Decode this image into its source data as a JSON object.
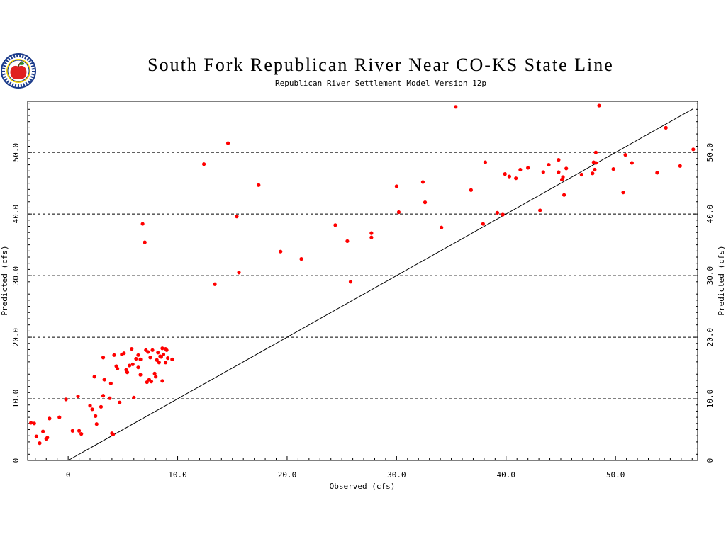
{
  "logo": {
    "icon": "apple-seal-icon"
  },
  "chart_data": {
    "type": "scatter",
    "title": "South Fork Republican River Near CO-KS State Line",
    "subtitle": "Republican River Settlement Model Version 12p",
    "xlabel": "Observed (cfs)",
    "ylabel": "Predicted (cfs)",
    "ylabel_right": "Predicted (cfs)",
    "xlim": [
      -3.7,
      57.5
    ],
    "ylim": [
      0,
      58.3
    ],
    "x_ticks": [
      0,
      10,
      20,
      30,
      40,
      50
    ],
    "x_tick_labels": [
      "0",
      "10.0",
      "20.0",
      "30.0",
      "40.0",
      "50.0"
    ],
    "y_ticks": [
      0,
      10,
      20,
      30,
      40,
      50
    ],
    "y_tick_labels": [
      "0",
      "10.0",
      "20.0",
      "30.0",
      "40.0",
      "50.0"
    ],
    "gridlines": "horizontal dashed at 10, 20, 30, 40, 50",
    "reference_line": {
      "type": "1:1",
      "from": [
        0,
        0
      ],
      "to": [
        57.1,
        57.1
      ]
    },
    "marker_color": "#ff0000",
    "points": [
      [
        -3.4,
        6.1
      ],
      [
        -3.1,
        6.0
      ],
      [
        -2.9,
        3.9
      ],
      [
        -2.6,
        2.8
      ],
      [
        -2.3,
        4.7
      ],
      [
        -2.0,
        3.5
      ],
      [
        -1.9,
        3.7
      ],
      [
        -1.7,
        6.8
      ],
      [
        -0.8,
        7.0
      ],
      [
        -0.2,
        9.9
      ],
      [
        0.4,
        4.8
      ],
      [
        0.9,
        10.4
      ],
      [
        1.0,
        4.8
      ],
      [
        1.2,
        4.3
      ],
      [
        2.0,
        8.9
      ],
      [
        2.2,
        8.3
      ],
      [
        2.4,
        13.6
      ],
      [
        2.5,
        7.2
      ],
      [
        2.6,
        5.9
      ],
      [
        3.0,
        8.7
      ],
      [
        3.2,
        10.5
      ],
      [
        3.2,
        16.7
      ],
      [
        3.3,
        13.1
      ],
      [
        3.8,
        10.1
      ],
      [
        3.9,
        12.5
      ],
      [
        4.0,
        4.4
      ],
      [
        4.1,
        4.2
      ],
      [
        4.2,
        17.1
      ],
      [
        4.4,
        15.3
      ],
      [
        4.5,
        14.9
      ],
      [
        4.7,
        9.4
      ],
      [
        4.9,
        17.2
      ],
      [
        5.1,
        17.4
      ],
      [
        5.3,
        14.7
      ],
      [
        5.4,
        14.3
      ],
      [
        5.6,
        15.4
      ],
      [
        5.8,
        18.1
      ],
      [
        5.9,
        15.6
      ],
      [
        6.0,
        10.2
      ],
      [
        6.2,
        16.5
      ],
      [
        6.4,
        17.1
      ],
      [
        6.4,
        15.1
      ],
      [
        6.6,
        13.9
      ],
      [
        6.6,
        16.4
      ],
      [
        6.8,
        38.4
      ],
      [
        7.0,
        35.4
      ],
      [
        7.1,
        17.9
      ],
      [
        7.2,
        12.7
      ],
      [
        7.3,
        17.6
      ],
      [
        7.4,
        13.1
      ],
      [
        7.5,
        16.7
      ],
      [
        7.6,
        12.8
      ],
      [
        7.7,
        17.9
      ],
      [
        7.9,
        14.1
      ],
      [
        8.0,
        13.6
      ],
      [
        8.1,
        16.3
      ],
      [
        8.2,
        17.5
      ],
      [
        8.3,
        15.9
      ],
      [
        8.4,
        16.9
      ],
      [
        8.5,
        16.8
      ],
      [
        8.6,
        18.2
      ],
      [
        8.6,
        12.9
      ],
      [
        8.7,
        17.2
      ],
      [
        8.9,
        15.9
      ],
      [
        8.9,
        18.1
      ],
      [
        9.0,
        17.9
      ],
      [
        9.1,
        16.6
      ],
      [
        9.5,
        16.4
      ],
      [
        12.4,
        48.1
      ],
      [
        13.4,
        28.6
      ],
      [
        14.6,
        51.5
      ],
      [
        15.4,
        39.6
      ],
      [
        15.6,
        30.5
      ],
      [
        17.4,
        44.7
      ],
      [
        19.4,
        33.9
      ],
      [
        21.3,
        32.7
      ],
      [
        24.4,
        38.2
      ],
      [
        25.5,
        35.6
      ],
      [
        25.8,
        29.0
      ],
      [
        27.7,
        36.9
      ],
      [
        27.7,
        36.2
      ],
      [
        30.0,
        44.5
      ],
      [
        30.2,
        40.3
      ],
      [
        32.4,
        45.2
      ],
      [
        32.6,
        41.9
      ],
      [
        34.1,
        37.8
      ],
      [
        35.4,
        57.4
      ],
      [
        36.8,
        43.9
      ],
      [
        37.9,
        38.4
      ],
      [
        38.1,
        48.4
      ],
      [
        39.2,
        40.2
      ],
      [
        39.7,
        39.9
      ],
      [
        39.9,
        46.5
      ],
      [
        40.3,
        46.1
      ],
      [
        40.9,
        45.8
      ],
      [
        41.3,
        47.2
      ],
      [
        42.0,
        47.5
      ],
      [
        43.1,
        40.6
      ],
      [
        43.4,
        46.8
      ],
      [
        43.9,
        48.0
      ],
      [
        44.8,
        46.8
      ],
      [
        44.8,
        48.8
      ],
      [
        45.1,
        45.6
      ],
      [
        45.2,
        46.0
      ],
      [
        45.3,
        43.1
      ],
      [
        45.5,
        47.4
      ],
      [
        46.9,
        46.4
      ],
      [
        47.9,
        46.6
      ],
      [
        48.0,
        48.4
      ],
      [
        48.1,
        47.2
      ],
      [
        48.2,
        48.3
      ],
      [
        48.2,
        50.0
      ],
      [
        48.5,
        57.6
      ],
      [
        49.8,
        47.3
      ],
      [
        50.7,
        43.5
      ],
      [
        50.9,
        49.6
      ],
      [
        51.5,
        48.3
      ],
      [
        53.8,
        46.7
      ],
      [
        54.6,
        54.0
      ],
      [
        55.9,
        47.8
      ],
      [
        57.1,
        50.5
      ]
    ]
  }
}
